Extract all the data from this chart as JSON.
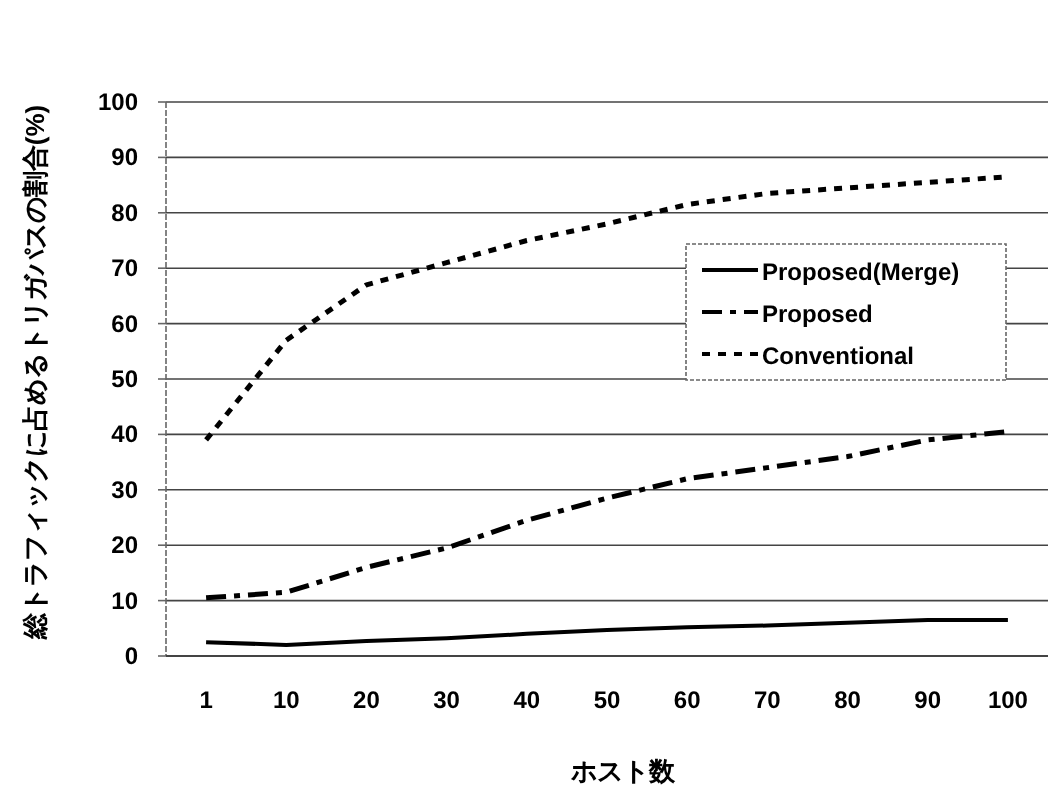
{
  "chart_data": {
    "type": "line",
    "xlabel": "ホスト数",
    "ylabel": "総トラフィックに占めるトリガパスの割合(%)",
    "categories": [
      "1",
      "10",
      "20",
      "30",
      "40",
      "50",
      "60",
      "70",
      "80",
      "90",
      "100"
    ],
    "series": [
      {
        "name": "Proposed(Merge)",
        "color": "#000000",
        "line_style": "solid",
        "values": [
          2.5,
          2,
          2.7,
          3.2,
          4,
          4.7,
          5.2,
          5.5,
          6,
          6.5,
          6.5
        ]
      },
      {
        "name": "Proposed",
        "color": "#000000",
        "line_style": "dashed",
        "values": [
          10.5,
          11.5,
          16,
          19.5,
          24.5,
          28.5,
          32,
          34,
          36,
          39,
          40.5
        ]
      },
      {
        "name": "Conventional",
        "color": "#000000",
        "line_style": "dotted",
        "values": [
          39,
          57,
          67,
          71,
          75,
          78,
          81.5,
          83.5,
          84.5,
          85.5,
          86.5
        ]
      }
    ],
    "ylim": [
      0,
      100
    ],
    "yticks": [
      0,
      10,
      20,
      30,
      40,
      50,
      60,
      70,
      80,
      90,
      100
    ],
    "grid": "y",
    "legend": "right",
    "marker": "none"
  }
}
